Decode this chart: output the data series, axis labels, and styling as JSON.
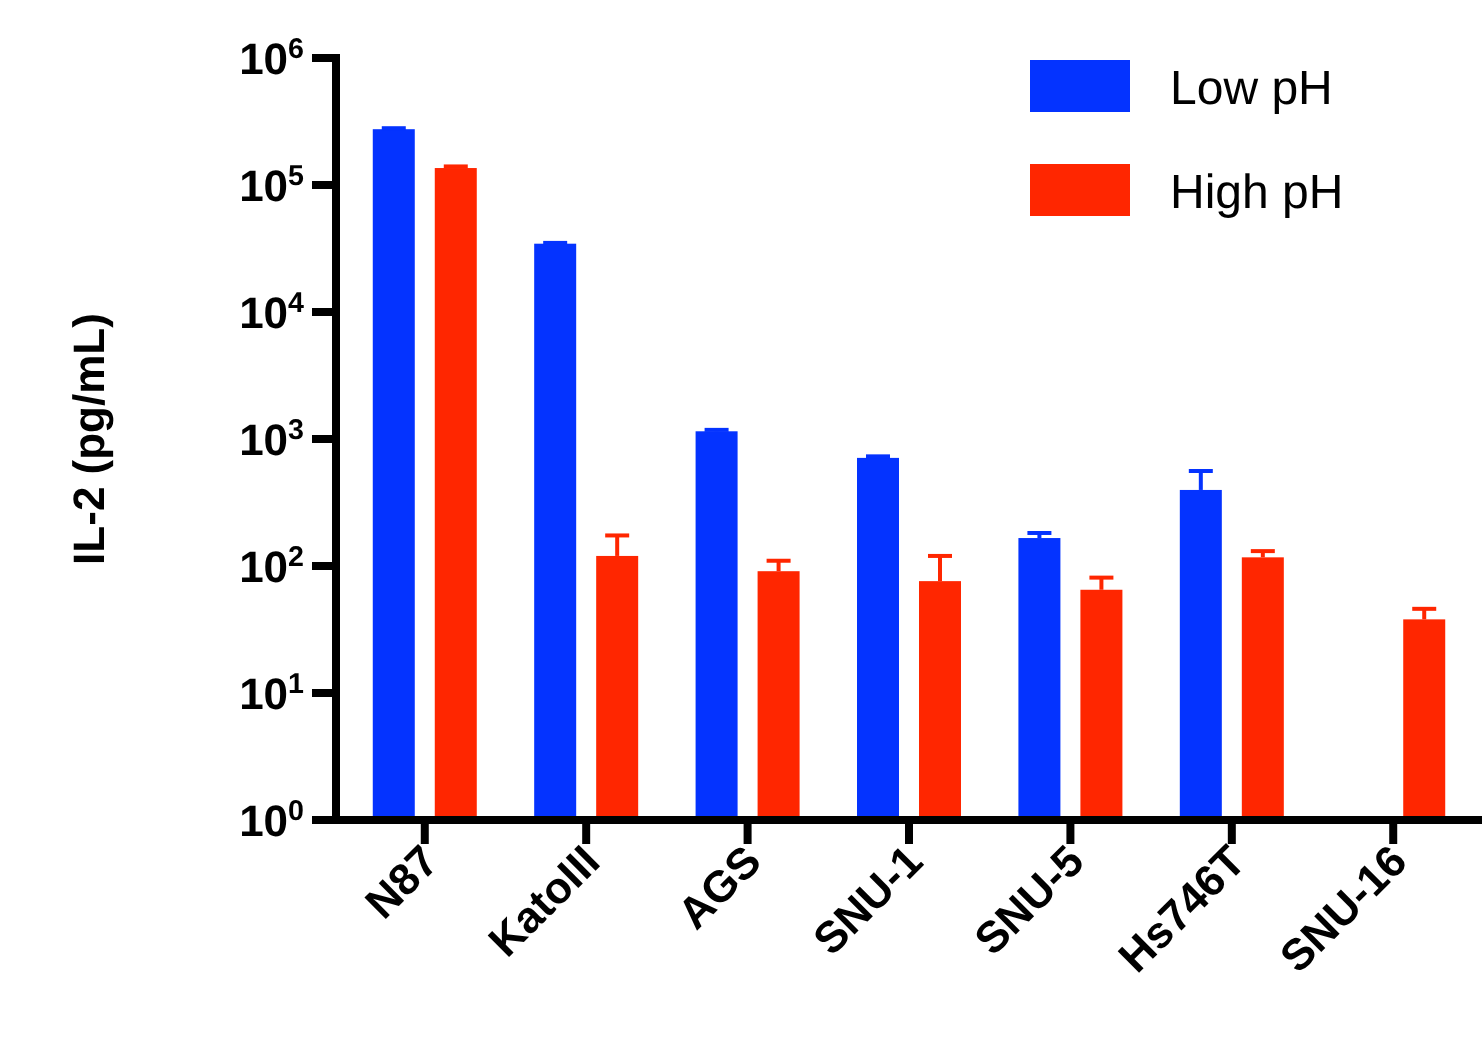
{
  "chart_data": {
    "type": "bar",
    "ylabel": "IL-2 (pg/mL)",
    "log": "y",
    "ylim": [
      1,
      1000000
    ],
    "yticks": [
      {
        "value": 1,
        "label": "10$^{0}$"
      },
      {
        "value": 10,
        "label": "10$^{1}$"
      },
      {
        "value": 100,
        "label": "10$^{2}$"
      },
      {
        "value": 1000,
        "label": "10$^{3}$"
      },
      {
        "value": 10000,
        "label": "10$^{4}$"
      },
      {
        "value": 100000,
        "label": "10$^{5}$"
      },
      {
        "value": 1000000,
        "label": "10$^{6}$"
      }
    ],
    "categories": [
      "N87",
      "KatoIII",
      "AGS",
      "SNU-1",
      "SNU-5",
      "Hs746T",
      "SNU-16"
    ],
    "series": [
      {
        "name": "Low pH",
        "color": "#0433ff",
        "values": [
          275000,
          34500,
          1150,
          710,
          166,
          397,
          null
        ],
        "errors": [
          [
            275000,
            280000
          ],
          [
            34500,
            35000
          ],
          [
            1150,
            1180
          ],
          [
            710,
            730
          ],
          [
            166,
            182
          ],
          [
            397,
            560
          ],
          null
        ]
      },
      {
        "name": "High pH",
        "color": "#ff2600",
        "values": [
          136000,
          120,
          91,
          76,
          65,
          117,
          38
        ],
        "errors": [
          [
            136000,
            140000
          ],
          [
            120,
            174
          ],
          [
            91,
            110
          ],
          [
            76,
            120
          ],
          [
            65,
            81
          ],
          [
            117,
            131
          ],
          [
            38,
            46
          ]
        ]
      }
    ],
    "legend": "top right",
    "grid": false
  }
}
